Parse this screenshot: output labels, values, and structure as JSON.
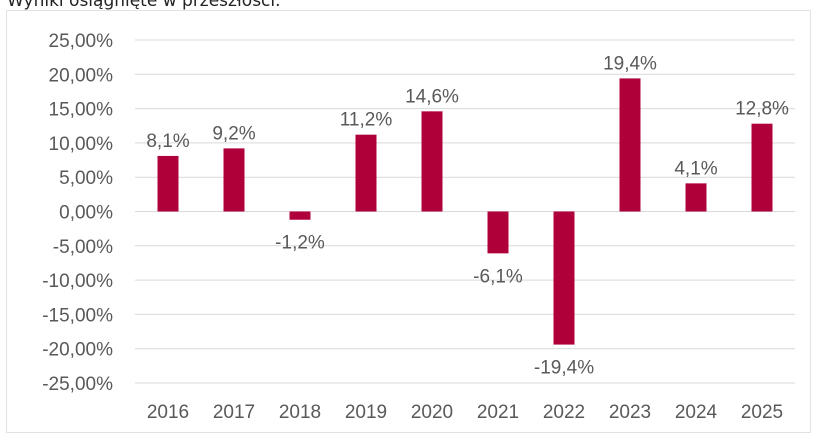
{
  "caption": "Wyniki osiągnięte w przeszłości.",
  "colors": {
    "bar": "#b0003a",
    "grid": "#d9d9d9",
    "text": "#595959"
  },
  "chart_data": {
    "type": "bar",
    "title": "",
    "xlabel": "",
    "ylabel": "",
    "categories": [
      "2016",
      "2017",
      "2018",
      "2019",
      "2020",
      "2021",
      "2022",
      "2023",
      "2024",
      "2025"
    ],
    "values": [
      8.1,
      9.2,
      -1.2,
      11.2,
      14.6,
      -6.1,
      -19.4,
      19.4,
      4.1,
      12.8
    ],
    "data_labels": [
      "8,1%",
      "9,2%",
      "-1,2%",
      "11,2%",
      "14,6%",
      "-6,1%",
      "-19,4%",
      "19,4%",
      "4,1%",
      "12,8%"
    ],
    "ylim": [
      -25,
      25
    ],
    "yticks": [
      25,
      20,
      15,
      10,
      5,
      0,
      -5,
      -10,
      -15,
      -20,
      -25
    ],
    "ytick_labels": [
      "25,00%",
      "20,00%",
      "15,00%",
      "10,00%",
      "5,00%",
      "0,00%",
      "-5,00%",
      "-10,00%",
      "-15,00%",
      "-20,00%",
      "-25,00%"
    ],
    "grid": true,
    "legend": "none"
  }
}
